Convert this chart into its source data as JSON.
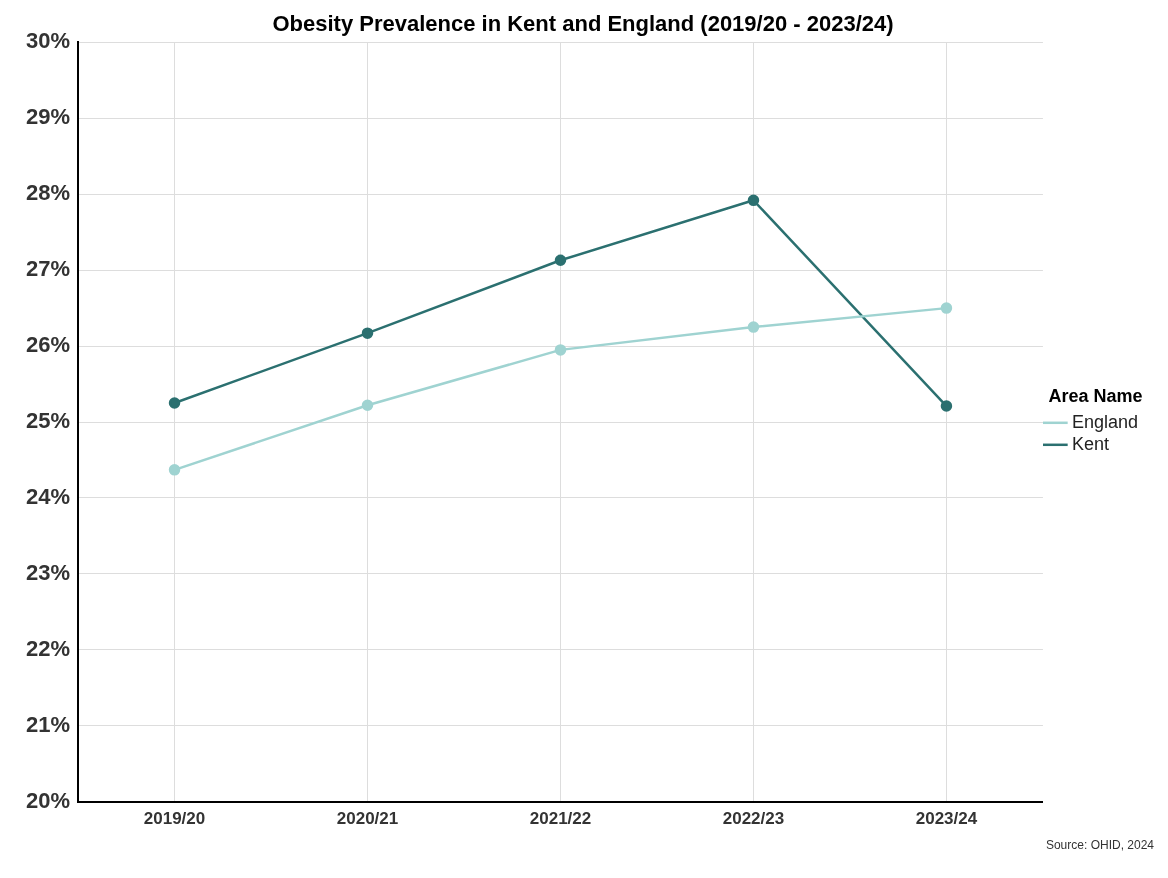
{
  "chart_data": {
    "type": "line",
    "title": "Obesity Prevalence in Kent and England (2019/20 - 2023/24)",
    "categories": [
      "2019/20",
      "2020/21",
      "2021/22",
      "2022/23",
      "2023/24"
    ],
    "series": [
      {
        "name": "England",
        "color": "#9fd3d1",
        "values": [
          24.37,
          25.22,
          25.95,
          26.25,
          26.5
        ]
      },
      {
        "name": "Kent",
        "color": "#2b7070",
        "values": [
          25.25,
          26.17,
          27.13,
          27.92,
          25.21
        ]
      }
    ],
    "ylim": [
      20,
      30
    ],
    "yticks": [
      {
        "value": 20,
        "label": "20%"
      },
      {
        "value": 21,
        "label": "21%"
      },
      {
        "value": 22,
        "label": "22%"
      },
      {
        "value": 23,
        "label": "23%"
      },
      {
        "value": 24,
        "label": "24%"
      },
      {
        "value": 25,
        "label": "25%"
      },
      {
        "value": 26,
        "label": "26%"
      },
      {
        "value": 27,
        "label": "27%"
      },
      {
        "value": 28,
        "label": "28%"
      },
      {
        "value": 29,
        "label": "29%"
      },
      {
        "value": 30,
        "label": "30%"
      }
    ],
    "grid": true,
    "legend": "right",
    "legend_title": "Area Name",
    "marker": "circle",
    "line_style": "solid",
    "annotations": [
      "Source: OHID, 2024"
    ]
  }
}
